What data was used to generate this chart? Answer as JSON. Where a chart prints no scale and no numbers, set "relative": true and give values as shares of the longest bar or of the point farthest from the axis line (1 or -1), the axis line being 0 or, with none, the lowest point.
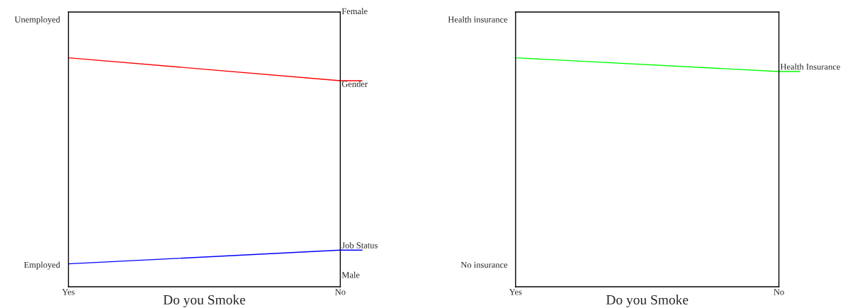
{
  "chart_data": [
    {
      "type": "line",
      "relative": true,
      "categories": [
        "Yes",
        "No"
      ],
      "xlabel": "Do you Smoke",
      "series": [
        {
          "name": "Gender",
          "color": "#ff0000",
          "values": [
            1,
            0.9
          ]
        },
        {
          "name": "Job Status",
          "color": "#0000ff",
          "values": [
            0.1,
            0.16
          ]
        }
      ],
      "annotations": [
        "Unemployed",
        "Employed",
        "Female",
        "Male"
      ],
      "legend": "right"
    },
    {
      "type": "line",
      "relative": true,
      "categories": [
        "Yes",
        "No"
      ],
      "xlabel": "Do you Smoke",
      "series": [
        {
          "name": "Health Insurance",
          "color": "#00ff00",
          "values": [
            1,
            0.94
          ]
        }
      ],
      "annotations": [
        "Health insurance",
        "No insurance"
      ],
      "legend": "right"
    }
  ]
}
